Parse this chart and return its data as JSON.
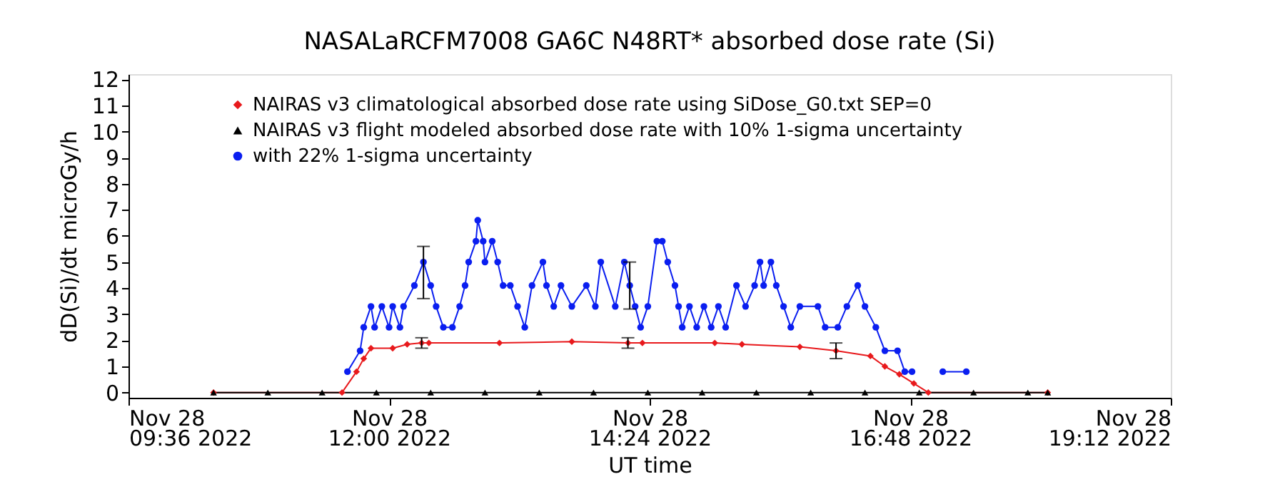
{
  "chart_data": {
    "type": "line",
    "title": "NASALaRCFM7008  GA6C N48RT* absorbed dose rate (Si)",
    "xlabel": "UT time",
    "ylabel": "dD(Si)/dt microGy/h",
    "xlim": [
      "2022-11-28T09:36",
      "2022-11-28T19:12"
    ],
    "xticks": [
      {
        "value": "2022-11-28T09:36",
        "label": "Nov 28\n09:36 2022"
      },
      {
        "value": "2022-11-28T12:00",
        "label": "Nov 28\n12:00 2022"
      },
      {
        "value": "2022-11-28T14:24",
        "label": "Nov 28\n14:24 2022"
      },
      {
        "value": "2022-11-28T16:48",
        "label": "Nov 28\n16:48 2022"
      },
      {
        "value": "2022-11-28T19:12",
        "label": "Nov 28\n19:12 2022"
      }
    ],
    "ylim": [
      -0.2,
      12.2
    ],
    "yticks": [
      0,
      1,
      2,
      3,
      4,
      5,
      6,
      7,
      8,
      9,
      10,
      11,
      12
    ],
    "grid": false,
    "legend": "top left",
    "series": [
      {
        "name": "NAIRAS v3 climatological absorbed dose rate using SiDose_G0.txt SEP=0",
        "color": "#e8191c",
        "marker": "diamond",
        "x": [
          "2022-11-28T10:23",
          "2022-11-28T11:34",
          "2022-11-28T11:42",
          "2022-11-28T11:46",
          "2022-11-28T11:50",
          "2022-11-28T12:02",
          "2022-11-28T12:10",
          "2022-11-28T12:18",
          "2022-11-28T12:22",
          "2022-11-28T13:01",
          "2022-11-28T13:41",
          "2022-11-28T14:12",
          "2022-11-28T14:20",
          "2022-11-28T15:00",
          "2022-11-28T15:15",
          "2022-11-28T15:47",
          "2022-11-28T16:07",
          "2022-11-28T16:26",
          "2022-11-28T16:34",
          "2022-11-28T16:42",
          "2022-11-28T16:50",
          "2022-11-28T16:58",
          "2022-11-28T18:04"
        ],
        "values": [
          0,
          0,
          0.8,
          1.3,
          1.7,
          1.7,
          1.85,
          1.9,
          1.9,
          1.9,
          1.95,
          1.9,
          1.9,
          1.9,
          1.85,
          1.75,
          1.6,
          1.4,
          1.0,
          0.7,
          0.35,
          0,
          0
        ],
        "errors": [
          null,
          null,
          null,
          null,
          null,
          null,
          null,
          0.2,
          null,
          null,
          null,
          0.2,
          null,
          null,
          null,
          null,
          0.3,
          null,
          null,
          null,
          null,
          null,
          null
        ]
      },
      {
        "name": "NAIRAS v3 flight modeled absorbed dose rate with 10% 1-sigma uncertainty",
        "color": "#000000",
        "marker": "triangle",
        "x": [
          "2022-11-28T10:23",
          "2022-11-28T10:53",
          "2022-11-28T11:23",
          "2022-11-28T11:53",
          "2022-11-28T12:23",
          "2022-11-28T12:53",
          "2022-11-28T13:23",
          "2022-11-28T13:53",
          "2022-11-28T14:23",
          "2022-11-28T14:53",
          "2022-11-28T15:23",
          "2022-11-28T15:53",
          "2022-11-28T16:23",
          "2022-11-28T16:53",
          "2022-11-28T17:23",
          "2022-11-28T17:53",
          "2022-11-28T18:04"
        ],
        "values": [
          0,
          0,
          0,
          0,
          0,
          0,
          0,
          0,
          0,
          0,
          0,
          0,
          0,
          0,
          0,
          0,
          0
        ]
      },
      {
        "name": "with 22% 1-sigma uncertainty",
        "color": "#0a1ef0",
        "marker": "circle",
        "x": [
          "2022-11-28T11:37",
          "2022-11-28T11:44",
          "2022-11-28T11:46",
          "2022-11-28T11:50",
          "2022-11-28T11:52",
          "2022-11-28T11:56",
          "2022-11-28T12:00",
          "2022-11-28T12:02",
          "2022-11-28T12:06",
          "2022-11-28T12:08",
          "2022-11-28T12:14",
          "2022-11-28T12:19",
          "2022-11-28T12:23",
          "2022-11-28T12:26",
          "2022-11-28T12:30",
          "2022-11-28T12:35",
          "2022-11-28T12:39",
          "2022-11-28T12:42",
          "2022-11-28T12:44",
          "2022-11-28T12:48",
          "2022-11-28T12:49",
          "2022-11-28T12:52",
          "2022-11-28T12:53",
          "2022-11-28T12:57",
          "2022-11-28T13:00",
          "2022-11-28T13:03",
          "2022-11-28T13:07",
          "2022-11-28T13:11",
          "2022-11-28T13:15",
          "2022-11-28T13:19",
          "2022-11-28T13:25",
          "2022-11-28T13:27",
          "2022-11-28T13:31",
          "2022-11-28T13:35",
          "2022-11-28T13:41",
          "2022-11-28T13:49",
          "2022-11-28T13:54",
          "2022-11-28T13:57",
          "2022-11-28T14:05",
          "2022-11-28T14:10",
          "2022-11-28T14:13",
          "2022-11-28T14:16",
          "2022-11-28T14:19",
          "2022-11-28T14:23",
          "2022-11-28T14:28",
          "2022-11-28T14:31",
          "2022-11-28T14:34",
          "2022-11-28T14:38",
          "2022-11-28T14:40",
          "2022-11-28T14:42",
          "2022-11-28T14:46",
          "2022-11-28T14:50",
          "2022-11-28T14:54",
          "2022-11-28T14:58",
          "2022-11-28T15:02",
          "2022-11-28T15:06",
          "2022-11-28T15:12",
          "2022-11-28T15:17",
          "2022-11-28T15:22",
          "2022-11-28T15:25",
          "2022-11-28T15:27",
          "2022-11-28T15:31",
          "2022-11-28T15:34",
          "2022-11-28T15:38",
          "2022-11-28T15:42",
          "2022-11-28T15:47",
          "2022-11-28T15:57",
          "2022-11-28T16:01",
          "2022-11-28T16:08",
          "2022-11-28T16:13",
          "2022-11-28T16:19",
          "2022-11-28T16:23",
          "2022-11-28T16:29",
          "2022-11-28T16:34",
          "2022-11-28T16:41",
          "2022-11-28T16:45",
          "2022-11-28T16:49",
          "2022-11-28T16:58",
          "2022-11-28T17:06",
          "2022-11-28T17:19"
        ],
        "values": [
          0.8,
          1.6,
          2.5,
          3.3,
          2.5,
          3.3,
          2.5,
          3.3,
          2.5,
          3.3,
          4.1,
          5.0,
          4.1,
          3.3,
          2.5,
          2.5,
          3.3,
          4.1,
          5.0,
          5.8,
          6.6,
          5.8,
          5.0,
          5.8,
          5.0,
          4.1,
          4.1,
          3.3,
          2.5,
          4.1,
          5.0,
          4.1,
          3.3,
          4.1,
          3.3,
          4.1,
          3.3,
          5.0,
          3.3,
          5.0,
          4.1,
          3.3,
          2.5,
          3.3,
          5.8,
          5.8,
          5.0,
          4.1,
          3.3,
          2.5,
          3.3,
          2.5,
          3.3,
          2.5,
          3.3,
          2.5,
          4.1,
          3.3,
          4.1,
          5.0,
          4.1,
          5.0,
          4.1,
          3.3,
          2.5,
          3.3,
          3.3,
          2.5,
          2.5,
          3.3,
          4.1,
          3.3,
          2.5,
          1.6,
          1.6,
          0.8,
          0.8,
          null,
          0.8,
          0.8
        ],
        "errors": [
          null,
          null,
          null,
          null,
          null,
          null,
          null,
          null,
          null,
          null,
          null,
          [
            3.6,
            5.6
          ],
          null,
          null,
          null,
          null,
          null,
          null,
          null,
          null,
          null,
          null,
          null,
          null,
          null,
          null,
          null,
          null,
          null,
          null,
          null,
          null,
          null,
          null,
          null,
          null,
          null,
          null,
          null,
          null,
          [
            3.2,
            5.0
          ],
          null,
          null,
          null,
          null,
          null,
          null,
          null,
          null,
          null,
          null,
          null,
          null,
          null,
          null,
          null,
          null,
          null,
          null,
          null,
          null,
          null,
          null,
          null,
          null,
          null,
          null,
          null,
          null,
          null,
          null,
          null,
          null,
          null,
          null,
          null,
          null,
          null,
          null,
          null
        ]
      }
    ]
  }
}
